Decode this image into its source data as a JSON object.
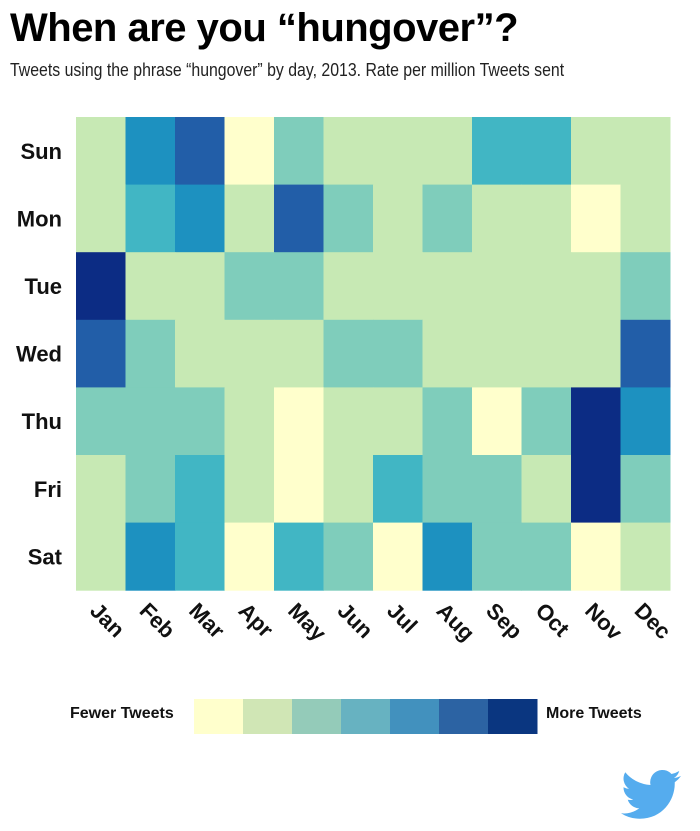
{
  "title": "When are you “hungover”?",
  "subtitle": "Tweets using the phrase “hungover” by day, 2013. Rate per million Tweets sent",
  "chart_data": {
    "type": "heatmap",
    "title": "When are you “hungover”?",
    "subtitle": "Tweets using the phrase “hungover” by day, 2013. Rate per million Tweets sent",
    "rows": [
      "Sun",
      "Mon",
      "Tue",
      "Wed",
      "Thu",
      "Fri",
      "Sat"
    ],
    "columns": [
      "Jan",
      "Feb",
      "Mar",
      "Apr",
      "May",
      "Jun",
      "Jul",
      "Aug",
      "Sep",
      "Oct",
      "Nov",
      "Dec"
    ],
    "levels_note_scale": "0 = fewest, 6 = most",
    "values": [
      [
        1,
        4,
        5,
        0,
        2,
        1,
        1,
        1,
        3,
        3,
        1,
        1
      ],
      [
        1,
        3,
        4,
        1,
        5,
        2,
        1,
        2,
        1,
        1,
        0,
        1
      ],
      [
        6,
        1,
        1,
        2,
        2,
        1,
        1,
        1,
        1,
        1,
        1,
        2
      ],
      [
        5,
        2,
        1,
        1,
        1,
        2,
        2,
        1,
        1,
        1,
        1,
        5
      ],
      [
        2,
        2,
        2,
        1,
        0,
        1,
        1,
        2,
        0,
        2,
        6,
        4
      ],
      [
        1,
        2,
        3,
        1,
        0,
        1,
        3,
        2,
        2,
        1,
        6,
        2
      ],
      [
        1,
        4,
        3,
        0,
        3,
        2,
        0,
        4,
        2,
        2,
        0,
        1
      ]
    ],
    "colors": [
      "#ffffcc",
      "#c7e9b4",
      "#7fcdbb",
      "#41b6c4",
      "#1d91c0",
      "#225ea8",
      "#0c2c84"
    ],
    "legend": {
      "low_label": "Fewer Tweets",
      "high_label": "More Tweets",
      "colors": [
        "#ffffcc",
        "#d0e6b5",
        "#94cbb9",
        "#67b2c1",
        "#4291be",
        "#2c63a3",
        "#0a3680"
      ],
      "placement": "bottom"
    }
  },
  "brand_icon": "twitter-bird-icon",
  "brand_color": "#55acee"
}
